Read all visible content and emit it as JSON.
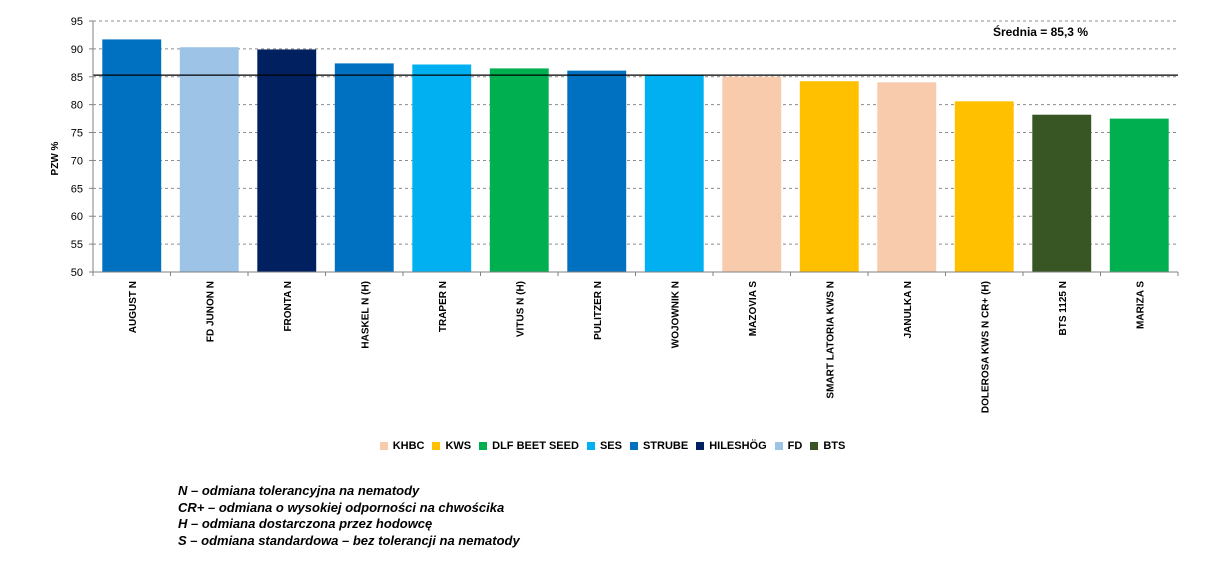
{
  "chart_data": {
    "type": "bar",
    "ylabel": "PZW %",
    "ylim": [
      50,
      95
    ],
    "yticks": [
      50,
      55,
      60,
      65,
      70,
      75,
      80,
      85,
      90,
      95
    ],
    "grid": "horizontal-dashed",
    "categories": [
      "AUGUST N",
      "FD JUNON N",
      "FRONTA N",
      "HASKEL N (H)",
      "TRAPER N",
      "VITUS N (H)",
      "PULITZER N",
      "WOJOWNIK N",
      "MAZOVIA S",
      "SMART LATORIA KWS N",
      "JANULKA N",
      "DOLEROSA KWS N CR+ (H)",
      "BTS 1125 N",
      "MARIZA S"
    ],
    "values": [
      91.7,
      90.3,
      89.9,
      87.4,
      87.2,
      86.5,
      86.1,
      85.4,
      85.0,
      84.2,
      84.0,
      80.6,
      78.2,
      77.5
    ],
    "breeders": [
      "STRUBE",
      "FD",
      "HILESHÖG",
      "STRUBE",
      "SES",
      "DLF BEET SEED",
      "STRUBE",
      "SES",
      "KHBC",
      "KWS",
      "KHBC",
      "KWS",
      "BTS",
      "DLF BEET SEED"
    ],
    "mean": 85.3,
    "mean_label": "Średnia = 85,3 %",
    "legend_position": "bottom",
    "legend": [
      {
        "name": "KHBC",
        "color": "#f8cbad"
      },
      {
        "name": "KWS",
        "color": "#ffc000"
      },
      {
        "name": "DLF BEET SEED",
        "color": "#00b050"
      },
      {
        "name": "SES",
        "color": "#00b0f0"
      },
      {
        "name": "STRUBE",
        "color": "#0070c0"
      },
      {
        "name": "HILESHÖG",
        "color": "#002060"
      },
      {
        "name": "FD",
        "color": "#9dc3e6"
      },
      {
        "name": "BTS",
        "color": "#375623"
      }
    ]
  },
  "notes": [
    "N – odmiana tolerancyjna na nematody",
    "CR+ – odmiana o wysokiej odporności na chwościka",
    "H – odmiana dostarczona przez hodowcę",
    "S – odmiana standardowa – bez tolerancji na nematody"
  ]
}
